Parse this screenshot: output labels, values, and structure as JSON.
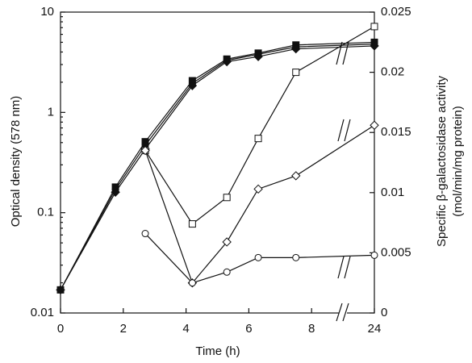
{
  "chart_data": {
    "type": "line",
    "xlabel": "Time (h)",
    "ylabel": "Optical density (578 nm)",
    "y2label": [
      "Specific β-galactosidase activity",
      "(mol/min/mg protein)"
    ],
    "xlim": [
      0,
      24
    ],
    "xticks": [
      0,
      2,
      4,
      6,
      8,
      24
    ],
    "xbreak": [
      9,
      23
    ],
    "ylim": [
      0.01,
      10
    ],
    "yticks": [
      0.01,
      0.1,
      1,
      10
    ],
    "ylog": true,
    "y2lim": [
      0,
      0.025
    ],
    "y2ticks": [
      0,
      0.005,
      0.01,
      0.015,
      0.02,
      0.025
    ],
    "series": [
      {
        "marker": "square",
        "filled": true,
        "color": "#111",
        "x": [
          0,
          1.75,
          2.7,
          4.2,
          5.3,
          6.3,
          7.5,
          24
        ],
        "values": [
          0.017,
          0.18,
          0.51,
          2.07,
          3.4,
          3.9,
          4.7,
          5.0
        ]
      },
      {
        "marker": "circle",
        "filled": true,
        "color": "#111",
        "x": [
          0,
          1.75,
          2.7,
          4.2,
          5.3,
          6.3,
          7.5,
          24
        ],
        "values": [
          0.017,
          0.17,
          0.47,
          1.95,
          3.3,
          3.8,
          4.5,
          4.8
        ]
      },
      {
        "marker": "diamond",
        "filled": true,
        "color": "#111",
        "x": [
          0,
          1.75,
          2.7,
          4.2,
          5.3,
          6.3,
          7.5,
          24
        ],
        "values": [
          0.017,
          0.16,
          0.43,
          1.85,
          3.2,
          3.6,
          4.3,
          4.6
        ]
      },
      {
        "marker": "square",
        "filled": false,
        "axis": "y2",
        "color": "#111",
        "x": [
          2.7,
          4.2,
          5.3,
          6.3,
          7.5,
          24
        ],
        "values": [
          0.0135,
          0.0074,
          0.0096,
          0.0145,
          0.02,
          0.0238
        ]
      },
      {
        "marker": "diamond",
        "filled": false,
        "axis": "y2",
        "color": "#111",
        "x": [
          2.7,
          4.2,
          5.3,
          6.3,
          7.5,
          24
        ],
        "values": [
          0.0135,
          0.0025,
          0.0059,
          0.0103,
          0.0114,
          0.0156
        ]
      },
      {
        "marker": "circle",
        "filled": false,
        "axis": "y2",
        "color": "#111",
        "x": [
          2.7,
          4.2,
          5.3,
          6.3,
          7.5,
          24
        ],
        "values": [
          0.0066,
          0.0025,
          0.0034,
          0.0046,
          0.0046,
          0.0048
        ]
      }
    ]
  }
}
